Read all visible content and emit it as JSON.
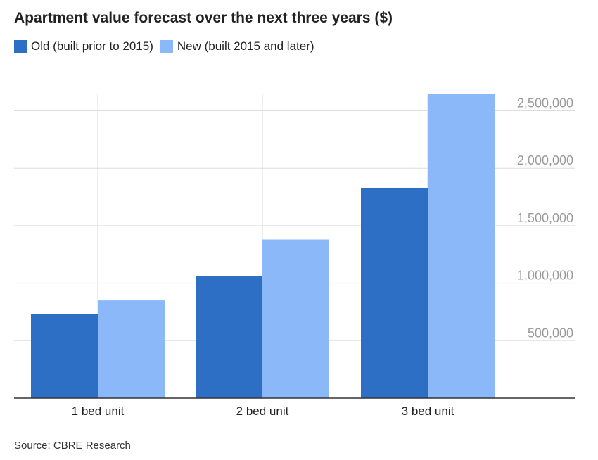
{
  "title": "Apartment value forecast over the next three years ($)",
  "source": "Source: CBRE Research",
  "colors": {
    "old": "#2e6fc6",
    "new": "#8ab8f8",
    "grid": "#dddddd",
    "axis": "#333333",
    "tick_text": "#9a9a9a"
  },
  "chart_data": {
    "type": "bar",
    "title": "Apartment value forecast over the next three years ($)",
    "categories": [
      "1 bed unit",
      "2 bed unit",
      "3 bed unit"
    ],
    "series": [
      {
        "name": "Old (built prior to 2015)",
        "values": [
          730000,
          1060000,
          1830000
        ]
      },
      {
        "name": "New (built 2015 and later)",
        "values": [
          850000,
          1380000,
          2650000
        ]
      }
    ],
    "y_ticks": [
      500000,
      1000000,
      1500000,
      2000000,
      2500000
    ],
    "y_tick_labels": [
      "500,000",
      "1,000,000",
      "1,500,000",
      "2,000,000",
      "2,500,000"
    ],
    "ylim": [
      0,
      2650000
    ],
    "grid": true,
    "legend_position": "top-left",
    "y_axis_position": "right",
    "xlabel": "",
    "ylabel": ""
  }
}
